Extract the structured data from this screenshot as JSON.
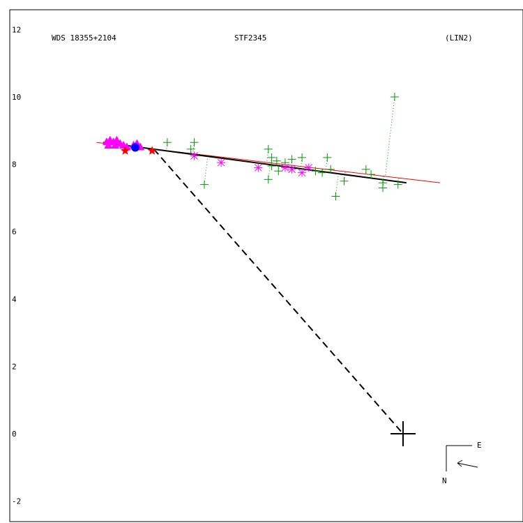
{
  "chart_data": {
    "type": "scatter",
    "header": {
      "left": "WDS 18355+2104",
      "center": "STF2345",
      "right": "(LIN2)"
    },
    "ylim": [
      -2,
      12
    ],
    "yticks": [
      "12",
      "10",
      "8",
      "6",
      "4",
      "2",
      "0",
      "-2"
    ],
    "orientation": {
      "east_label": "E",
      "north_label": "N"
    },
    "colors": {
      "orbit": "#000000",
      "fit_line": "#ff0000",
      "micrometric": "#009900",
      "speckle": "#ff00ff",
      "primary_marker": "#000000",
      "recent": "#ff0000",
      "interferometric": "#0000ff"
    },
    "primary": {
      "x": 0,
      "y": 0
    },
    "fit_line": [
      [
        9.1,
        8.65
      ],
      [
        -1.1,
        7.45
      ]
    ],
    "orbit_arc": [
      [
        8.9,
        8.65
      ],
      [
        -0.1,
        7.45
      ]
    ],
    "connector": [
      [
        7.4,
        8.45
      ],
      [
        0,
        0
      ]
    ],
    "series": [
      {
        "name": "",
        "marker": "plus",
        "points": [
          [
            7.0,
            8.65
          ],
          [
            6.2,
            8.65
          ],
          [
            6.3,
            8.45
          ],
          [
            5.9,
            7.4
          ],
          [
            4.0,
            8.45
          ],
          [
            3.9,
            8.2
          ],
          [
            3.75,
            8.1
          ],
          [
            3.9,
            7.95
          ],
          [
            4.0,
            7.55
          ],
          [
            3.7,
            7.8
          ],
          [
            3.5,
            8.05
          ],
          [
            3.3,
            8.15
          ],
          [
            3.0,
            8.2
          ],
          [
            2.6,
            7.8
          ],
          [
            2.4,
            7.75
          ],
          [
            2.25,
            8.2
          ],
          [
            2.15,
            7.85
          ],
          [
            2.0,
            7.05
          ],
          [
            1.75,
            7.5
          ],
          [
            1.1,
            7.85
          ],
          [
            0.95,
            7.7
          ],
          [
            0.6,
            7.3
          ],
          [
            0.6,
            7.45
          ],
          [
            0.15,
            7.4
          ],
          [
            0.25,
            10.0
          ]
        ]
      },
      {
        "name": "",
        "marker": "asterisk",
        "points": [
          [
            6.2,
            8.25
          ],
          [
            5.4,
            8.05
          ],
          [
            4.3,
            7.9
          ],
          [
            3.5,
            7.9
          ],
          [
            3.3,
            7.85
          ],
          [
            3.0,
            7.75
          ],
          [
            2.8,
            7.9
          ]
        ]
      },
      {
        "name": "",
        "marker": "triangle",
        "points": [
          [
            8.8,
            8.65
          ],
          [
            8.7,
            8.7
          ],
          [
            8.6,
            8.65
          ],
          [
            8.5,
            8.7
          ],
          [
            8.4,
            8.6
          ],
          [
            8.3,
            8.55
          ],
          [
            8.2,
            8.5
          ],
          [
            8.0,
            8.55
          ],
          [
            7.9,
            8.6
          ],
          [
            7.8,
            8.5
          ],
          [
            8.75,
            8.55
          ],
          [
            8.55,
            8.55
          ]
        ]
      },
      {
        "name": "",
        "marker": "star",
        "points": [
          [
            8.25,
            8.4
          ],
          [
            7.45,
            8.4
          ]
        ]
      },
      {
        "name": "",
        "marker": "circle",
        "points": [
          [
            7.95,
            8.5
          ]
        ]
      }
    ]
  }
}
